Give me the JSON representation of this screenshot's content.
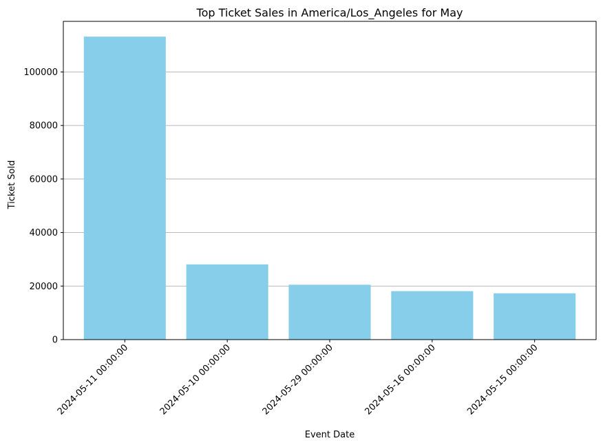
{
  "chart_data": {
    "type": "bar",
    "title": "Top Ticket Sales in America/Los_Angeles for May",
    "xlabel": "Event Date",
    "ylabel": "Ticket Sold",
    "categories": [
      "2024-05-11 00:00:00",
      "2024-05-10 00:00:00",
      "2024-05-29 00:00:00",
      "2024-05-16 00:00:00",
      "2024-05-15 00:00:00"
    ],
    "values": [
      113200,
      28100,
      20500,
      18100,
      17300
    ],
    "ylim": [
      0,
      118900
    ],
    "yticks": [
      0,
      20000,
      40000,
      60000,
      80000,
      100000
    ],
    "ytick_labels": [
      "0",
      "20000",
      "40000",
      "60000",
      "80000",
      "100000"
    ],
    "bar_color": "#87ceeb",
    "grid": "y-axis major",
    "legend": "none"
  }
}
